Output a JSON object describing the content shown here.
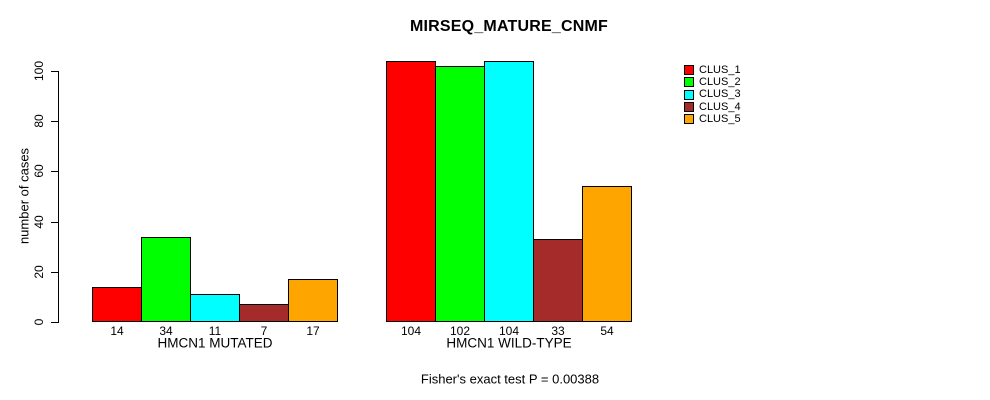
{
  "chart_data": {
    "type": "bar",
    "title": "MIRSEQ_MATURE_CNMF",
    "ylabel": "number of cases",
    "xlabel": "",
    "ylim": [
      0,
      104
    ],
    "yticks": [
      0,
      20,
      40,
      60,
      80,
      100
    ],
    "grid": false,
    "legend_position": "right",
    "categories": [
      "HMCN1 MUTATED",
      "HMCN1 WILD-TYPE"
    ],
    "series": [
      {
        "name": "CLUS_1",
        "color": "#FF0000",
        "values": [
          14,
          104
        ]
      },
      {
        "name": "CLUS_2",
        "color": "#00FF00",
        "values": [
          34,
          102
        ]
      },
      {
        "name": "CLUS_3",
        "color": "#00FFFF",
        "values": [
          11,
          104
        ]
      },
      {
        "name": "CLUS_4",
        "color": "#A52A2A",
        "values": [
          7,
          33
        ]
      },
      {
        "name": "CLUS_5",
        "color": "#FFA500",
        "values": [
          17,
          54
        ]
      }
    ],
    "bar_value_labels_shown": true,
    "annotation": "Fisher's exact test P = 0.00388"
  },
  "colors": {
    "background": "#FFFFFF",
    "axis": "#000000",
    "text": "#000000"
  }
}
